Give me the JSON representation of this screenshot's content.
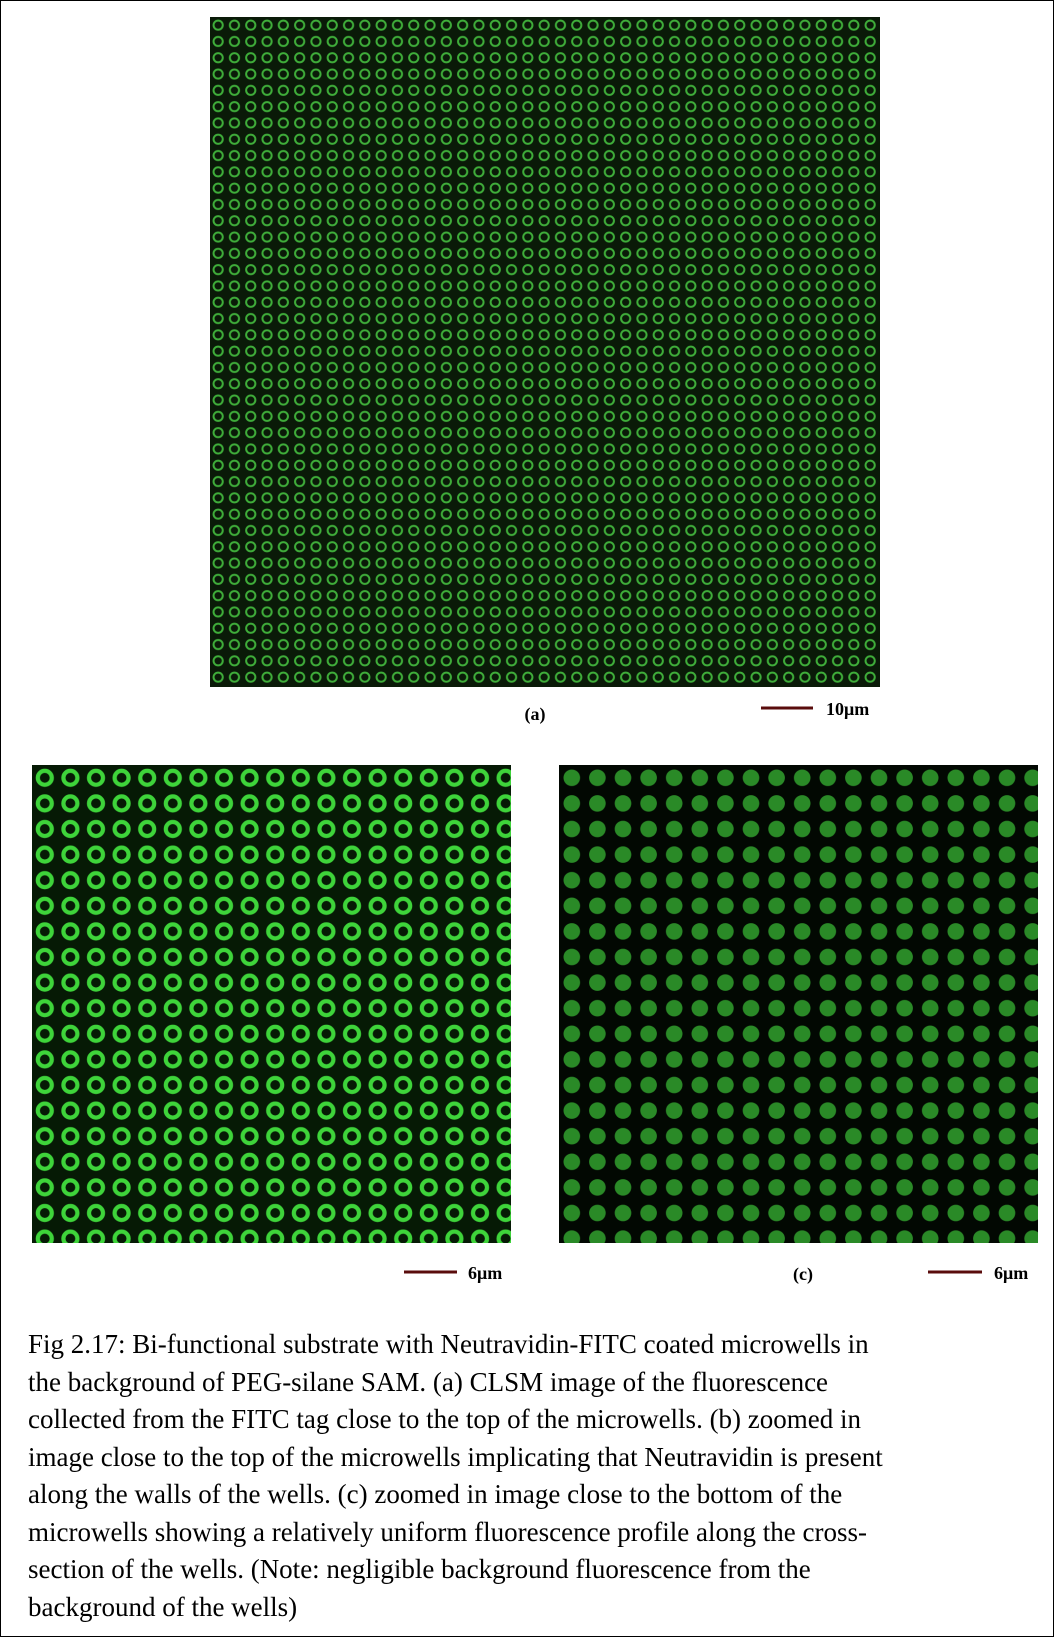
{
  "figure": {
    "panels": [
      {
        "label": "(a)",
        "scale_bar": "10μm"
      },
      {
        "scale_bar": "6μm"
      },
      {
        "label": "(c)",
        "scale_bar": "6μm"
      }
    ]
  },
  "caption": {
    "lines": [
      "Fig 2.17: Bi-functional substrate with Neutravidin-FITC coated microwells in",
      "the background of PEG-silane SAM. (a) CLSM image of the fluorescence",
      "collected from the FITC tag close to the top of the microwells. (b) zoomed in",
      "image close to the top of the microwells implicating that Neutravidin is present",
      "along the walls of the wells. (c) zoomed in image close to the bottom of the",
      "microwells showing a relatively uniform fluorescence profile along the cross-",
      "section of the wells. (Note: negligible background fluorescence from the",
      "background of the wells)"
    ]
  }
}
